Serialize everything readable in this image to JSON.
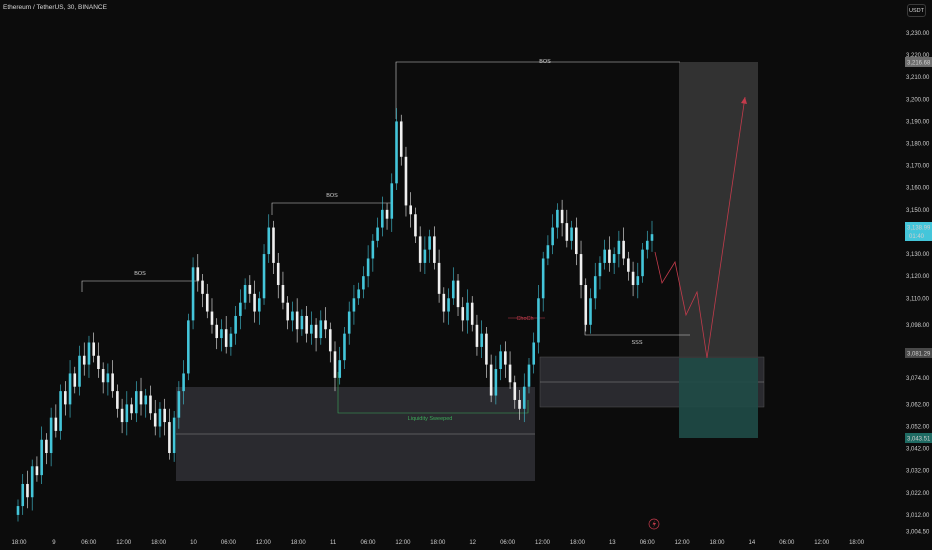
{
  "header": {
    "title": "Ethereum / TetherUS, 30, BINANCE",
    "currency": "USDT"
  },
  "colors": {
    "background": "#0c0c0c",
    "candle_up": "#44c6da",
    "candle_down": "#f0f0f0",
    "bos_line": "#d0d0d0",
    "zone_fill": "#2e2e33",
    "target_zone": "#3a3a3a",
    "stop_zone": "#1f4b47",
    "projection": "#c23b4b",
    "sweep": "#3dab5a",
    "choch": "#c23b4b"
  },
  "chart_data": {
    "type": "candlestick",
    "symbol": "Ethereum / TetherUS",
    "interval": "30",
    "exchange": "BINANCE",
    "ylim": [
      3000,
      3240
    ],
    "y_ticks": [
      3004.5,
      3012.0,
      3022.0,
      3032.0,
      3042.0,
      3052.0,
      3062.0,
      3074.0,
      3086.0,
      3098.0,
      3110.0,
      3120.0,
      3130.0,
      3140.0,
      3150.0,
      3160.0,
      3170.0,
      3180.0,
      3190.0,
      3200.0,
      3210.0,
      3220.0,
      3230.0
    ],
    "x_ticks": [
      "18:00",
      "9",
      "06:00",
      "12:00",
      "18:00",
      "10",
      "06:00",
      "12:00",
      "18:00",
      "11",
      "06:00",
      "12:00",
      "18:00",
      "12",
      "06:00",
      "12:00",
      "18:00",
      "13",
      "06:00",
      "12:00",
      "18:00",
      "14",
      "06:00",
      "12:00",
      "18:00"
    ],
    "price_labels": {
      "target": "3,216.68",
      "current": "3,138.99",
      "countdown": "01:40",
      "zone": "3,081.29",
      "stop": "3,043.51"
    },
    "annotations": [
      "BOS",
      "BOS",
      "BOS",
      "ChoCh",
      "Liquidity Sweeped",
      "SSS"
    ],
    "candles_approx": [
      [
        3012,
        3016
      ],
      [
        3016,
        3026
      ],
      [
        3026,
        3020
      ],
      [
        3020,
        3034
      ],
      [
        3034,
        3030
      ],
      [
        3030,
        3046
      ],
      [
        3046,
        3040
      ],
      [
        3040,
        3056
      ],
      [
        3056,
        3050
      ],
      [
        3050,
        3068
      ],
      [
        3068,
        3062
      ],
      [
        3062,
        3076
      ],
      [
        3076,
        3070
      ],
      [
        3070,
        3084
      ],
      [
        3084,
        3080
      ],
      [
        3080,
        3090
      ],
      [
        3090,
        3084
      ],
      [
        3084,
        3078
      ],
      [
        3078,
        3072
      ],
      [
        3072,
        3076
      ],
      [
        3076,
        3068
      ],
      [
        3068,
        3060
      ],
      [
        3060,
        3054
      ],
      [
        3054,
        3062
      ],
      [
        3062,
        3058
      ],
      [
        3058,
        3068
      ],
      [
        3068,
        3062
      ],
      [
        3062,
        3066
      ],
      [
        3066,
        3058
      ],
      [
        3058,
        3052
      ],
      [
        3052,
        3060
      ],
      [
        3060,
        3054
      ],
      [
        3054,
        3040
      ],
      [
        3040,
        3056
      ],
      [
        3056,
        3068
      ],
      [
        3068,
        3076
      ],
      [
        3076,
        3100
      ],
      [
        3100,
        3124
      ],
      [
        3124,
        3118
      ],
      [
        3118,
        3112
      ],
      [
        3112,
        3104
      ],
      [
        3104,
        3098
      ],
      [
        3098,
        3092
      ],
      [
        3092,
        3096
      ],
      [
        3096,
        3088
      ],
      [
        3088,
        3094
      ],
      [
        3094,
        3102
      ],
      [
        3102,
        3108
      ],
      [
        3108,
        3116
      ],
      [
        3116,
        3112
      ],
      [
        3112,
        3104
      ],
      [
        3104,
        3110
      ],
      [
        3110,
        3130
      ],
      [
        3130,
        3142
      ],
      [
        3142,
        3126
      ],
      [
        3126,
        3116
      ],
      [
        3116,
        3108
      ],
      [
        3108,
        3100
      ],
      [
        3100,
        3104
      ],
      [
        3104,
        3096
      ],
      [
        3096,
        3102
      ],
      [
        3102,
        3094
      ],
      [
        3094,
        3098
      ],
      [
        3098,
        3092
      ],
      [
        3092,
        3100
      ],
      [
        3100,
        3096
      ],
      [
        3096,
        3086
      ],
      [
        3086,
        3074
      ],
      [
        3074,
        3082
      ],
      [
        3082,
        3094
      ],
      [
        3094,
        3104
      ],
      [
        3104,
        3110
      ],
      [
        3110,
        3114
      ],
      [
        3114,
        3120
      ],
      [
        3120,
        3128
      ],
      [
        3128,
        3136
      ],
      [
        3136,
        3142
      ],
      [
        3142,
        3150
      ],
      [
        3150,
        3146
      ],
      [
        3146,
        3162
      ],
      [
        3162,
        3190
      ],
      [
        3190,
        3174
      ],
      [
        3174,
        3152
      ],
      [
        3152,
        3148
      ],
      [
        3148,
        3138
      ],
      [
        3138,
        3126
      ],
      [
        3126,
        3132
      ],
      [
        3132,
        3138
      ],
      [
        3138,
        3126
      ],
      [
        3126,
        3112
      ],
      [
        3112,
        3104
      ],
      [
        3104,
        3110
      ],
      [
        3110,
        3118
      ],
      [
        3118,
        3106
      ],
      [
        3106,
        3100
      ],
      [
        3100,
        3108
      ],
      [
        3108,
        3098
      ],
      [
        3098,
        3088
      ],
      [
        3088,
        3094
      ],
      [
        3094,
        3080
      ],
      [
        3080,
        3066
      ],
      [
        3066,
        3078
      ],
      [
        3078,
        3086
      ],
      [
        3086,
        3080
      ],
      [
        3080,
        3072
      ],
      [
        3072,
        3064
      ],
      [
        3064,
        3060
      ],
      [
        3060,
        3070
      ],
      [
        3070,
        3080
      ],
      [
        3080,
        3090
      ],
      [
        3090,
        3110
      ],
      [
        3110,
        3128
      ],
      [
        3128,
        3134
      ],
      [
        3134,
        3142
      ],
      [
        3142,
        3150
      ],
      [
        3150,
        3144
      ],
      [
        3144,
        3136
      ],
      [
        3136,
        3142
      ],
      [
        3142,
        3130
      ],
      [
        3130,
        3116
      ],
      [
        3116,
        3098
      ],
      [
        3098,
        3110
      ],
      [
        3110,
        3120
      ],
      [
        3120,
        3126
      ],
      [
        3126,
        3132
      ],
      [
        3132,
        3126
      ],
      [
        3126,
        3130
      ],
      [
        3130,
        3136
      ],
      [
        3136,
        3128
      ],
      [
        3128,
        3122
      ],
      [
        3122,
        3116
      ],
      [
        3116,
        3120
      ],
      [
        3120,
        3132
      ],
      [
        3132,
        3136
      ],
      [
        3136,
        3139
      ]
    ]
  },
  "footer": {
    "bolt_icon": "lightning-icon"
  }
}
